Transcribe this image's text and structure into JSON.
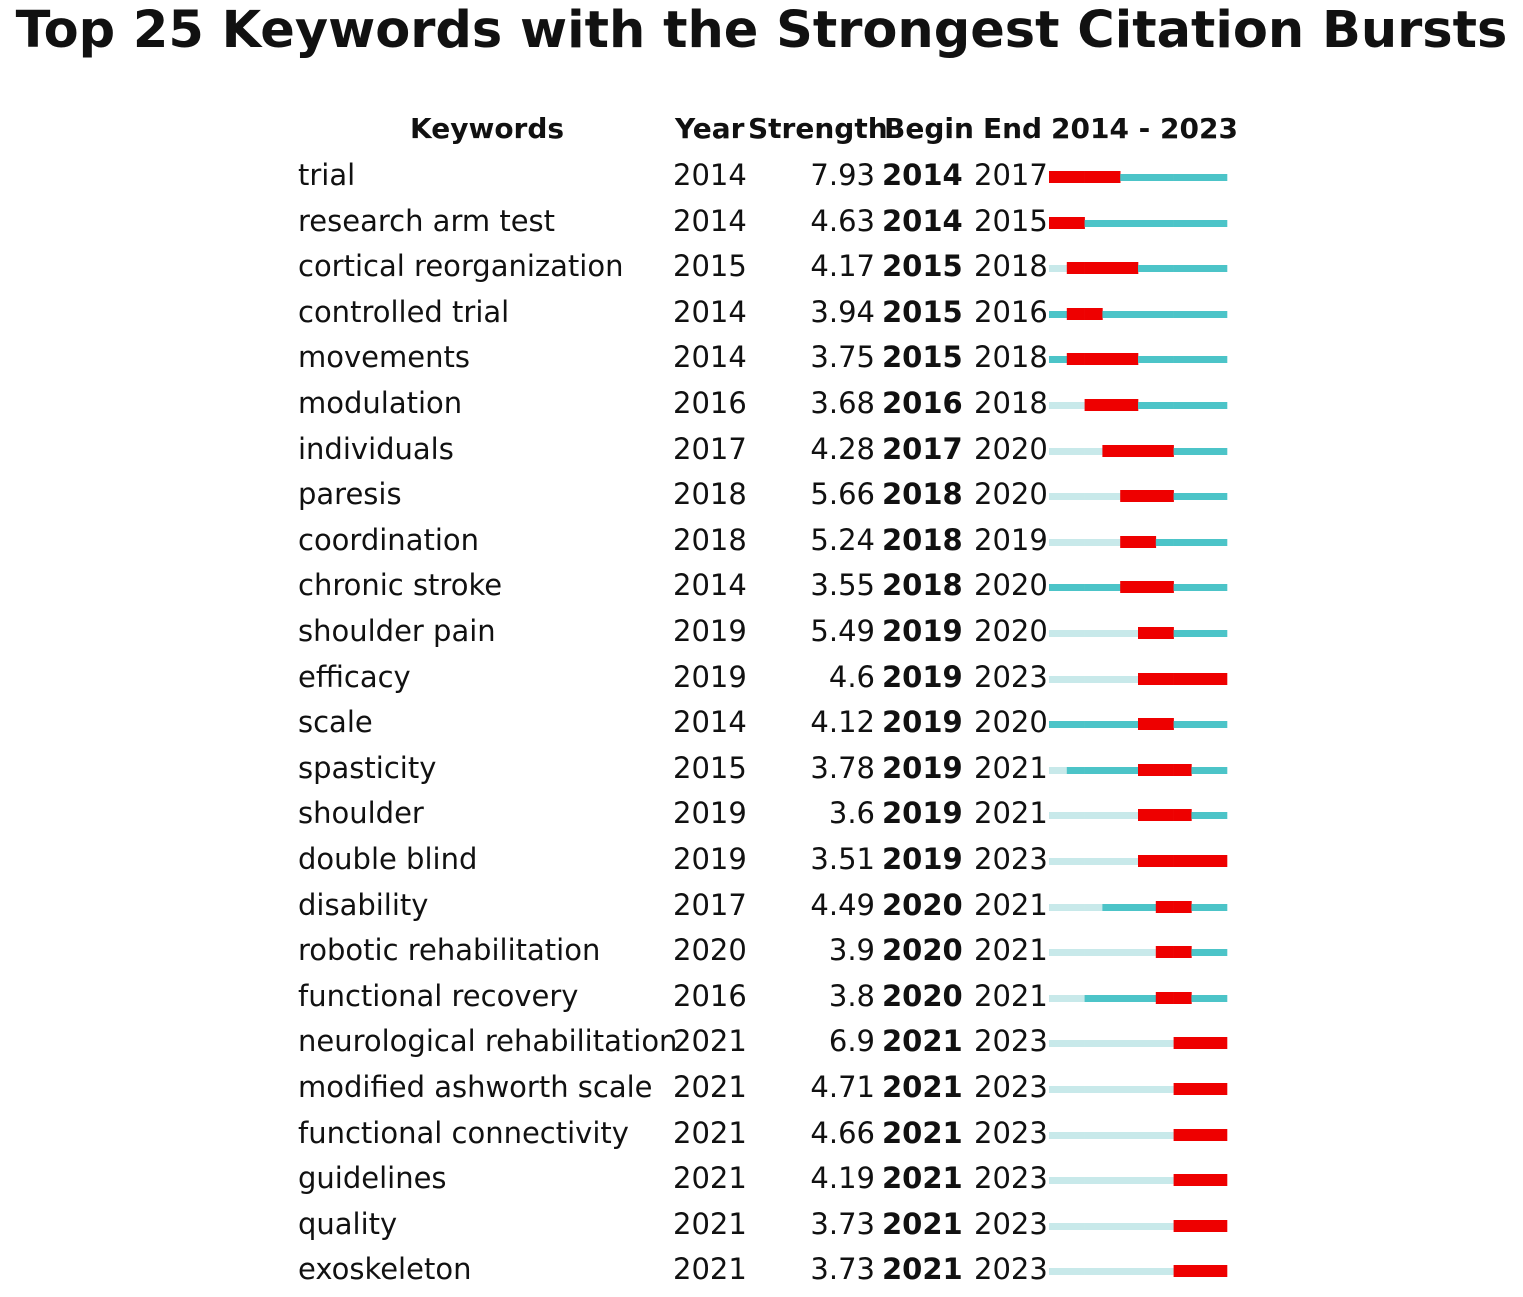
{
  "title": "Top 25 Keywords with the Strongest Citation Bursts",
  "headers": {
    "keywords": "Keywords",
    "year": "Year",
    "strength": "Strength",
    "begin": "Begin",
    "end": "End",
    "range": "2014 - 2023"
  },
  "colors": {
    "burst": "#ee0000",
    "active": "#4cc4c8",
    "inactive": "#c8e9ea",
    "text": "#111111"
  },
  "chart_data": {
    "type": "table",
    "title": "Top 25 Keywords with the Strongest Citation Bursts",
    "timeline_start": 2014,
    "timeline_end": 2023,
    "rows": [
      {
        "keyword": "trial",
        "year": "2014",
        "strength": "7.93",
        "begin": "2014",
        "end": "2017"
      },
      {
        "keyword": "research arm test",
        "year": "2014",
        "strength": "4.63",
        "begin": "2014",
        "end": "2015"
      },
      {
        "keyword": "cortical reorganization",
        "year": "2015",
        "strength": "4.17",
        "begin": "2015",
        "end": "2018"
      },
      {
        "keyword": "controlled trial",
        "year": "2014",
        "strength": "3.94",
        "begin": "2015",
        "end": "2016"
      },
      {
        "keyword": "movements",
        "year": "2014",
        "strength": "3.75",
        "begin": "2015",
        "end": "2018"
      },
      {
        "keyword": "modulation",
        "year": "2016",
        "strength": "3.68",
        "begin": "2016",
        "end": "2018"
      },
      {
        "keyword": "individuals",
        "year": "2017",
        "strength": "4.28",
        "begin": "2017",
        "end": "2020"
      },
      {
        "keyword": "paresis",
        "year": "2018",
        "strength": "5.66",
        "begin": "2018",
        "end": "2020"
      },
      {
        "keyword": "coordination",
        "year": "2018",
        "strength": "5.24",
        "begin": "2018",
        "end": "2019"
      },
      {
        "keyword": "chronic stroke",
        "year": "2014",
        "strength": "3.55",
        "begin": "2018",
        "end": "2020"
      },
      {
        "keyword": "shoulder pain",
        "year": "2019",
        "strength": "5.49",
        "begin": "2019",
        "end": "2020"
      },
      {
        "keyword": "efficacy",
        "year": "2019",
        "strength": "4.6",
        "begin": "2019",
        "end": "2023"
      },
      {
        "keyword": "scale",
        "year": "2014",
        "strength": "4.12",
        "begin": "2019",
        "end": "2020"
      },
      {
        "keyword": "spasticity",
        "year": "2015",
        "strength": "3.78",
        "begin": "2019",
        "end": "2021"
      },
      {
        "keyword": "shoulder",
        "year": "2019",
        "strength": "3.6",
        "begin": "2019",
        "end": "2021"
      },
      {
        "keyword": "double blind",
        "year": "2019",
        "strength": "3.51",
        "begin": "2019",
        "end": "2023"
      },
      {
        "keyword": "disability",
        "year": "2017",
        "strength": "4.49",
        "begin": "2020",
        "end": "2021"
      },
      {
        "keyword": "robotic rehabilitation",
        "year": "2020",
        "strength": "3.9",
        "begin": "2020",
        "end": "2021"
      },
      {
        "keyword": "functional recovery",
        "year": "2016",
        "strength": "3.8",
        "begin": "2020",
        "end": "2021"
      },
      {
        "keyword": "neurological rehabilitation",
        "year": "2021",
        "strength": "6.9",
        "begin": "2021",
        "end": "2023"
      },
      {
        "keyword": "modified ashworth scale",
        "year": "2021",
        "strength": "4.71",
        "begin": "2021",
        "end": "2023"
      },
      {
        "keyword": "functional connectivity",
        "year": "2021",
        "strength": "4.66",
        "begin": "2021",
        "end": "2023"
      },
      {
        "keyword": "guidelines",
        "year": "2021",
        "strength": "4.19",
        "begin": "2021",
        "end": "2023"
      },
      {
        "keyword": "quality",
        "year": "2021",
        "strength": "3.73",
        "begin": "2021",
        "end": "2023"
      },
      {
        "keyword": "exoskeleton",
        "year": "2021",
        "strength": "3.73",
        "begin": "2021",
        "end": "2023"
      }
    ]
  }
}
